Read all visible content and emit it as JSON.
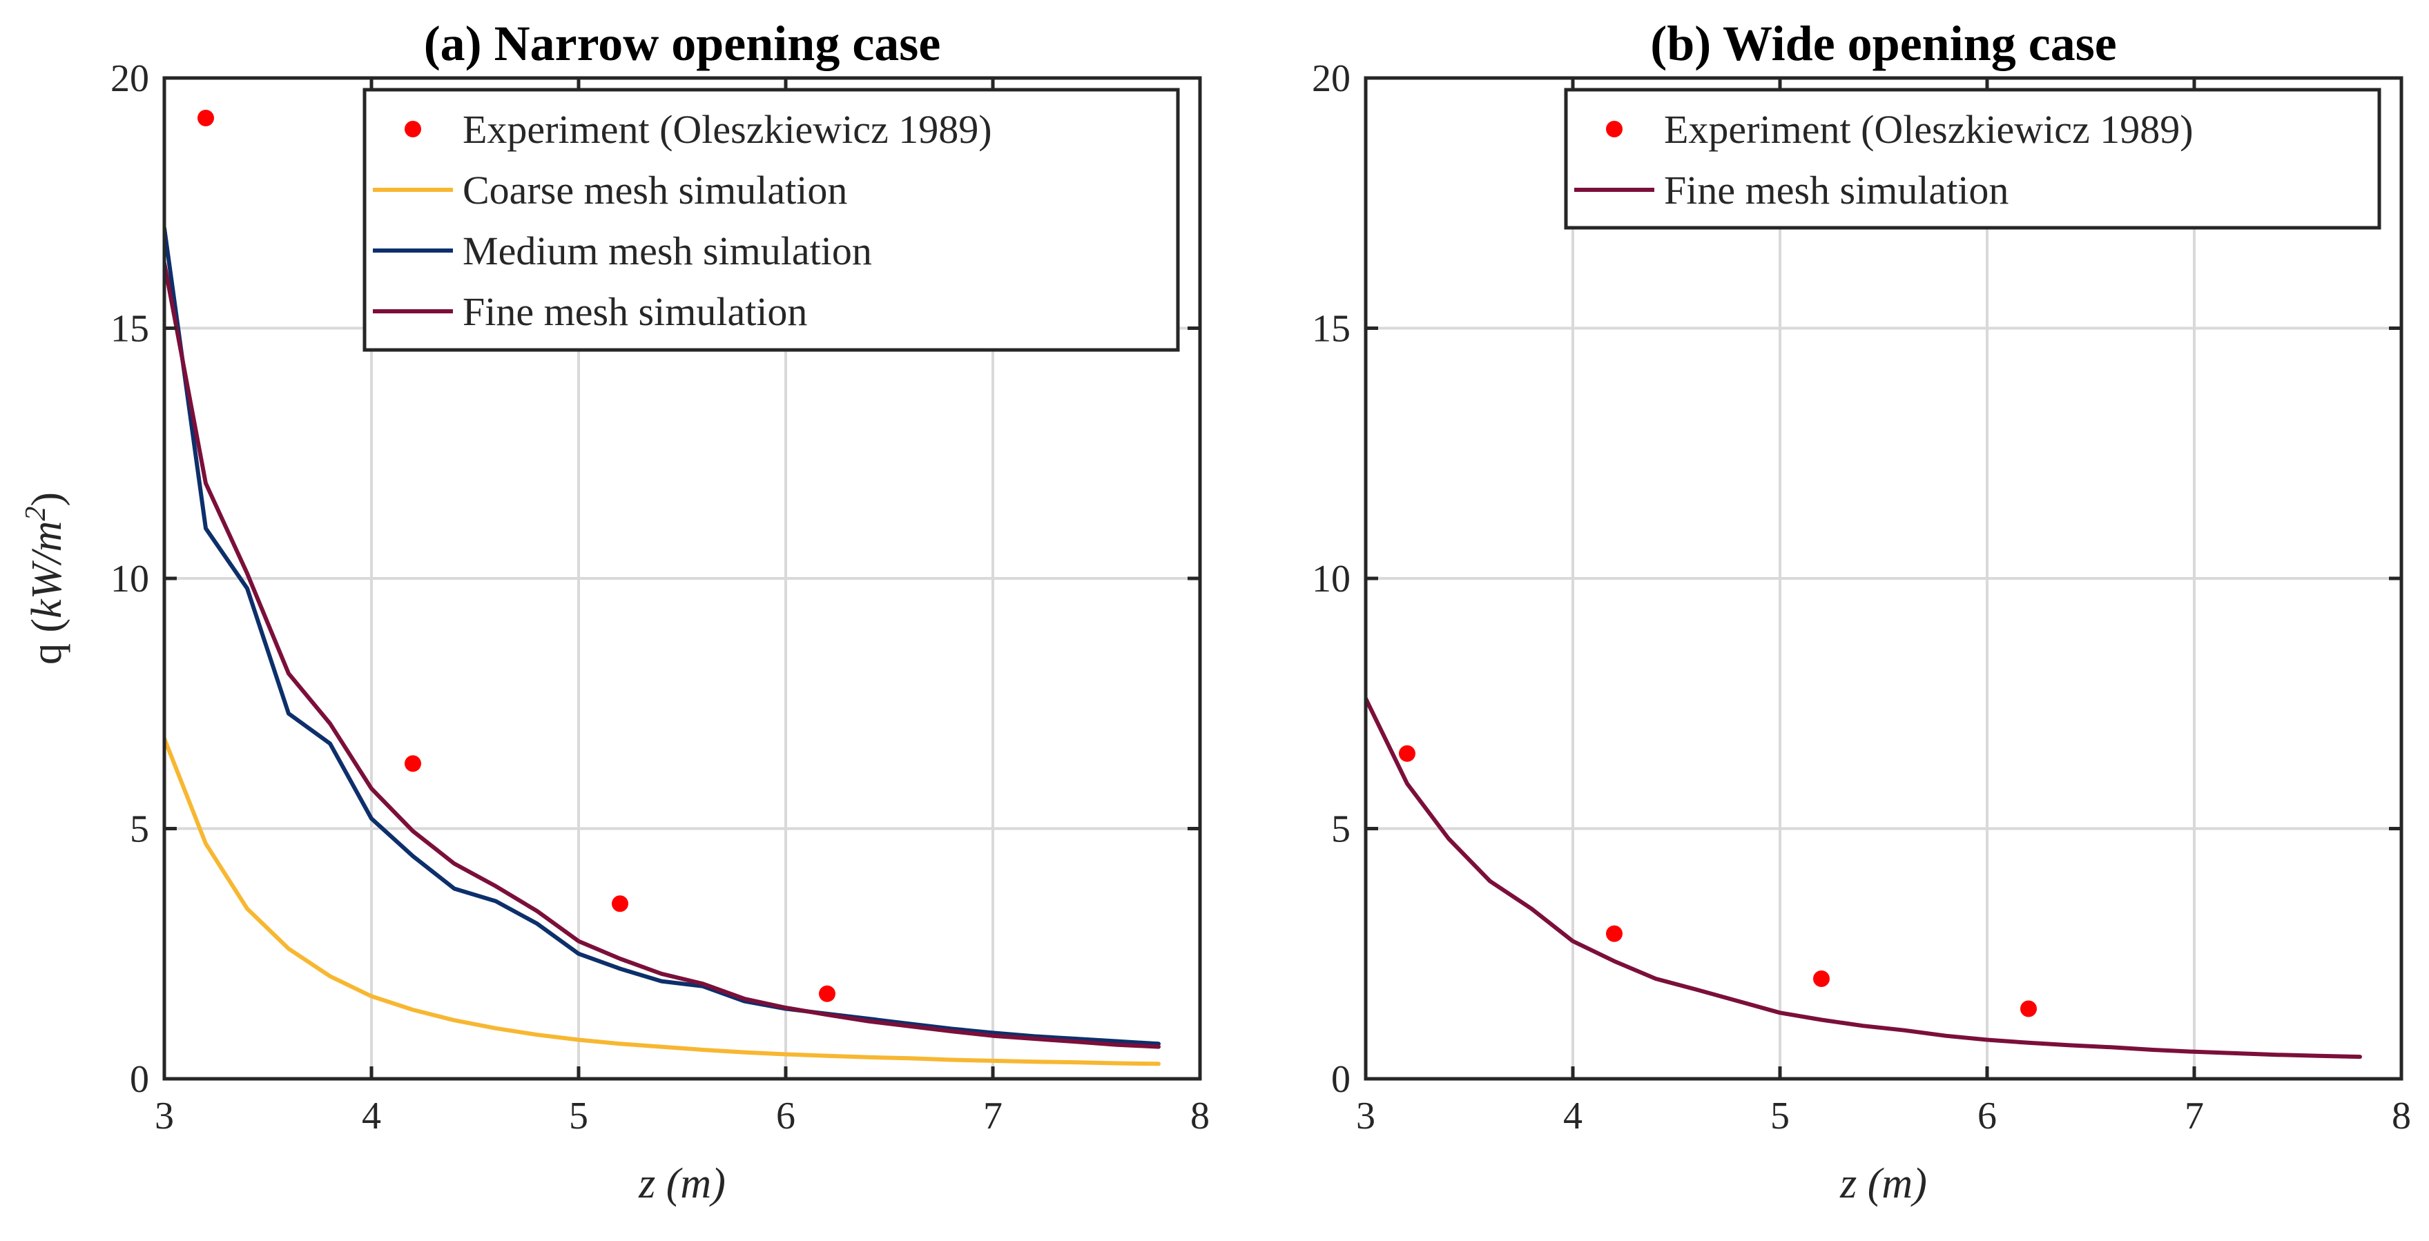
{
  "chart_data": [
    {
      "type": "line",
      "title": "(a) Narrow opening case",
      "xlabel": "z (m)",
      "ylabel": "q (kW/m²)",
      "ylabel_parts": {
        "prefix": "q (",
        "var": "kW/m",
        "sup": "2",
        "suffix": ")"
      },
      "xlabel_parts": {
        "var": "z",
        "unit": "(m)"
      },
      "xlim": [
        3,
        8
      ],
      "ylim": [
        0,
        20
      ],
      "xticks": [
        3,
        4,
        5,
        6,
        7,
        8
      ],
      "yticks": [
        0,
        5,
        10,
        15,
        20
      ],
      "grid": true,
      "legend_position": "top-right",
      "series": [
        {
          "name": "Experiment (Oleszkiewicz 1989)",
          "kind": "scatter",
          "color": "#ff0000",
          "x": [
            3.2,
            4.2,
            5.2,
            6.2
          ],
          "y": [
            19.2,
            6.3,
            3.5,
            1.7
          ]
        },
        {
          "name": "Coarse mesh simulation",
          "kind": "line",
          "color": "#f7b731",
          "x": [
            3.0,
            3.2,
            3.4,
            3.6,
            3.8,
            4.0,
            4.2,
            4.4,
            4.6,
            4.8,
            5.0,
            5.2,
            5.4,
            5.6,
            5.8,
            6.0,
            6.2,
            6.4,
            6.6,
            6.8,
            7.0,
            7.2,
            7.4,
            7.6,
            7.8
          ],
          "y": [
            6.8,
            4.7,
            3.4,
            2.6,
            2.05,
            1.65,
            1.38,
            1.17,
            1.01,
            0.88,
            0.78,
            0.7,
            0.64,
            0.58,
            0.53,
            0.49,
            0.46,
            0.43,
            0.41,
            0.38,
            0.36,
            0.34,
            0.33,
            0.31,
            0.3
          ]
        },
        {
          "name": "Medium mesh simulation",
          "kind": "line",
          "color": "#0d2f6b",
          "x": [
            3.0,
            3.2,
            3.4,
            3.6,
            3.8,
            4.0,
            4.2,
            4.4,
            4.6,
            4.8,
            5.0,
            5.2,
            5.4,
            5.6,
            5.8,
            6.0,
            6.2,
            6.4,
            6.6,
            6.8,
            7.0,
            7.2,
            7.4,
            7.6,
            7.8
          ],
          "y": [
            17.0,
            11.0,
            9.8,
            7.3,
            6.7,
            5.2,
            4.45,
            3.8,
            3.55,
            3.1,
            2.5,
            2.2,
            1.95,
            1.85,
            1.55,
            1.4,
            1.3,
            1.2,
            1.1,
            1.0,
            0.92,
            0.85,
            0.8,
            0.75,
            0.7
          ]
        },
        {
          "name": "Fine mesh simulation",
          "kind": "line",
          "color": "#7b0f3a",
          "x": [
            3.0,
            3.2,
            3.4,
            3.6,
            3.8,
            4.0,
            4.2,
            4.4,
            4.6,
            4.8,
            5.0,
            5.2,
            5.4,
            5.6,
            5.8,
            6.0,
            6.2,
            6.4,
            6.6,
            6.8,
            7.0,
            7.2,
            7.4,
            7.6,
            7.8
          ],
          "y": [
            16.3,
            11.9,
            10.1,
            8.1,
            7.1,
            5.8,
            4.95,
            4.3,
            3.85,
            3.35,
            2.75,
            2.4,
            2.1,
            1.9,
            1.6,
            1.42,
            1.28,
            1.15,
            1.05,
            0.95,
            0.86,
            0.8,
            0.74,
            0.68,
            0.64
          ]
        }
      ]
    },
    {
      "type": "line",
      "title": "(b) Wide opening case",
      "xlabel": "z (m)",
      "ylabel": "",
      "xlabel_parts": {
        "var": "z",
        "unit": "(m)"
      },
      "xlim": [
        3,
        8
      ],
      "ylim": [
        0,
        20
      ],
      "xticks": [
        3,
        4,
        5,
        6,
        7,
        8
      ],
      "yticks": [
        0,
        5,
        10,
        15,
        20
      ],
      "grid": true,
      "legend_position": "top-right",
      "series": [
        {
          "name": "Experiment (Oleszkiewicz 1989)",
          "kind": "scatter",
          "color": "#ff0000",
          "x": [
            3.2,
            4.2,
            5.2,
            6.2
          ],
          "y": [
            6.5,
            2.9,
            2.0,
            1.4
          ]
        },
        {
          "name": "Fine mesh simulation",
          "kind": "line",
          "color": "#7b0f3a",
          "x": [
            3.0,
            3.2,
            3.4,
            3.6,
            3.8,
            4.0,
            4.2,
            4.4,
            4.6,
            4.8,
            5.0,
            5.2,
            5.4,
            5.6,
            5.8,
            6.0,
            6.2,
            6.4,
            6.6,
            6.8,
            7.0,
            7.2,
            7.4,
            7.6,
            7.8
          ],
          "y": [
            7.6,
            5.9,
            4.8,
            3.95,
            3.4,
            2.75,
            2.35,
            2.0,
            1.78,
            1.55,
            1.32,
            1.18,
            1.06,
            0.97,
            0.86,
            0.78,
            0.72,
            0.67,
            0.63,
            0.58,
            0.54,
            0.51,
            0.48,
            0.46,
            0.44
          ]
        }
      ]
    }
  ]
}
